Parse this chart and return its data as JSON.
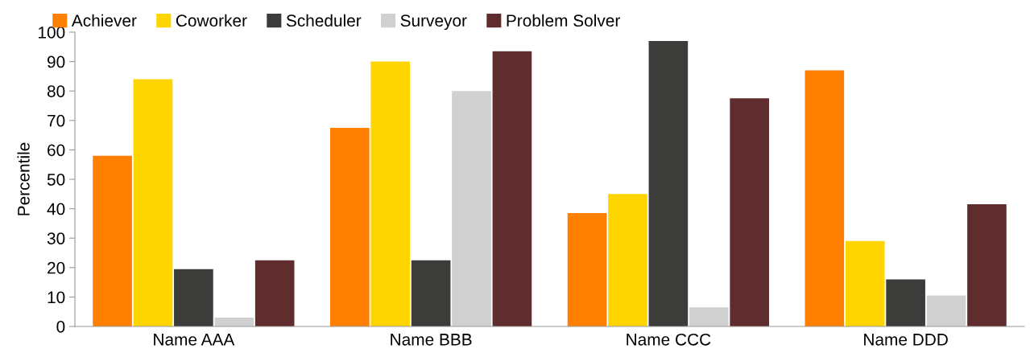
{
  "chart_data": {
    "type": "bar",
    "ylabel": "Percentile",
    "categories": [
      "Name AAA",
      "Name BBB",
      "Name CCC",
      "Name DDD"
    ],
    "series": [
      {
        "name": "Achiever",
        "color": "#ff7f00",
        "values": [
          58,
          67.5,
          38.5,
          87
        ]
      },
      {
        "name": "Coworker",
        "color": "#ffd500",
        "values": [
          84,
          90,
          45,
          29
        ]
      },
      {
        "name": "Scheduler",
        "color": "#3c3c3a",
        "values": [
          19.5,
          22.5,
          97,
          16
        ]
      },
      {
        "name": "Surveyor",
        "color": "#d0d0d0",
        "values": [
          3,
          80,
          6.5,
          10.5
        ]
      },
      {
        "name": "Problem Solver",
        "color": "#602d2f",
        "values": [
          22.5,
          93.5,
          77.5,
          41.5
        ]
      }
    ],
    "ylim": [
      0,
      100
    ],
    "yticks": [
      0,
      10,
      20,
      30,
      40,
      50,
      60,
      70,
      80,
      90,
      100
    ],
    "grid": false,
    "legend": "top left"
  }
}
